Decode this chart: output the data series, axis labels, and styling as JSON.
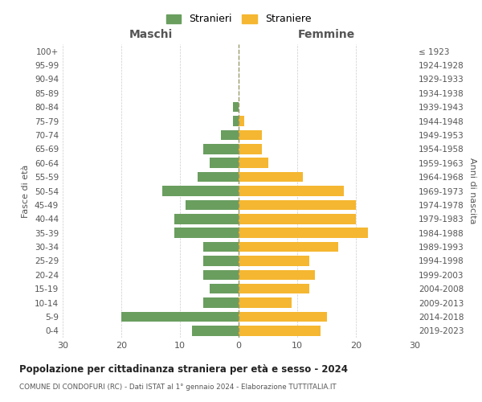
{
  "age_groups": [
    "0-4",
    "5-9",
    "10-14",
    "15-19",
    "20-24",
    "25-29",
    "30-34",
    "35-39",
    "40-44",
    "45-49",
    "50-54",
    "55-59",
    "60-64",
    "65-69",
    "70-74",
    "75-79",
    "80-84",
    "85-89",
    "90-94",
    "95-99",
    "100+"
  ],
  "birth_years": [
    "2019-2023",
    "2014-2018",
    "2009-2013",
    "2004-2008",
    "1999-2003",
    "1994-1998",
    "1989-1993",
    "1984-1988",
    "1979-1983",
    "1974-1978",
    "1969-1973",
    "1964-1968",
    "1959-1963",
    "1954-1958",
    "1949-1953",
    "1944-1948",
    "1939-1943",
    "1934-1938",
    "1929-1933",
    "1924-1928",
    "≤ 1923"
  ],
  "maschi": [
    8,
    20,
    6,
    5,
    6,
    6,
    6,
    11,
    11,
    9,
    13,
    7,
    5,
    6,
    3,
    1,
    1,
    0,
    0,
    0,
    0
  ],
  "femmine": [
    14,
    15,
    9,
    12,
    13,
    12,
    17,
    22,
    20,
    20,
    18,
    11,
    5,
    4,
    4,
    1,
    0,
    0,
    0,
    0,
    0
  ],
  "maschi_color": "#6a9e5f",
  "femmine_color": "#f5b731",
  "background_color": "#ffffff",
  "grid_color": "#cccccc",
  "title": "Popolazione per cittadinanza straniera per età e sesso - 2024",
  "subtitle": "COMUNE DI CONDOFURI (RC) - Dati ISTAT al 1° gennaio 2024 - Elaborazione TUTTITALIA.IT",
  "legend_maschi": "Stranieri",
  "legend_femmine": "Straniere",
  "xlabel_left": "Maschi",
  "xlabel_right": "Femmine",
  "ylabel_left": "Fasce di età",
  "ylabel_right": "Anni di nascita",
  "xlim": 30
}
